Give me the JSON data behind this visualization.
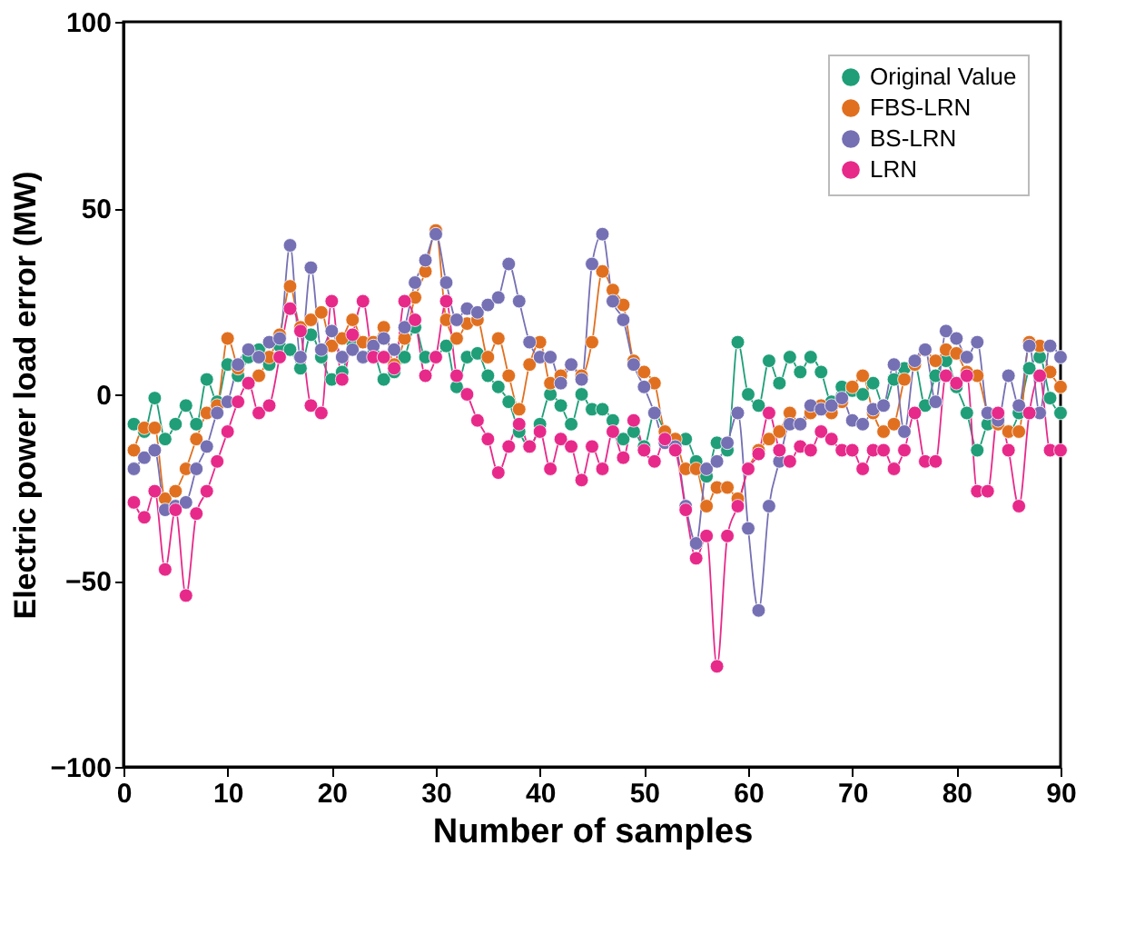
{
  "chart_data": {
    "type": "line",
    "xlabel": "Number of samples",
    "ylabel": "Electric power load error (MW)",
    "x": [
      1,
      2,
      3,
      4,
      5,
      6,
      7,
      8,
      9,
      10,
      11,
      12,
      13,
      14,
      15,
      16,
      17,
      18,
      19,
      20,
      21,
      22,
      23,
      24,
      25,
      26,
      27,
      28,
      29,
      30,
      31,
      32,
      33,
      34,
      35,
      36,
      37,
      38,
      39,
      40,
      41,
      42,
      43,
      44,
      45,
      46,
      47,
      48,
      49,
      50,
      51,
      52,
      53,
      54,
      55,
      56,
      57,
      58,
      59,
      60,
      61,
      62,
      63,
      64,
      65,
      66,
      67,
      68,
      69,
      70,
      71,
      72,
      73,
      74,
      75,
      76,
      77,
      78,
      79,
      80,
      81,
      82,
      83,
      84,
      85,
      86,
      87,
      88,
      89,
      90
    ],
    "series": [
      {
        "name": "Original Value",
        "color": "#1f9e78",
        "values": [
          -8,
          -10,
          -1,
          -12,
          -8,
          -3,
          -8,
          4,
          -2,
          8,
          5,
          10,
          12,
          8,
          13,
          12,
          7,
          16,
          10,
          4,
          6,
          14,
          10,
          11,
          4,
          6,
          10,
          18,
          10,
          10,
          13,
          2,
          10,
          11,
          5,
          2,
          -2,
          -10,
          -14,
          -8,
          0,
          -3,
          -8,
          0,
          -4,
          -4,
          -7,
          -12,
          -10,
          -14,
          -5,
          -10,
          -14,
          -12,
          -18,
          -22,
          -13,
          -15,
          14,
          0,
          -3,
          9,
          3,
          10,
          6,
          10,
          6,
          -2,
          2,
          1,
          0,
          3,
          -3,
          4,
          7,
          8,
          -3,
          5,
          9,
          2,
          -5,
          -15,
          -8,
          -6,
          -10,
          -5,
          7,
          10,
          -1,
          -5
        ]
      },
      {
        "name": "FBS-LRN",
        "color": "#e07020",
        "values": [
          -15,
          -9,
          -9,
          -28,
          -26,
          -20,
          -12,
          -5,
          -3,
          15,
          7,
          3,
          5,
          10,
          16,
          29,
          18,
          20,
          22,
          13,
          15,
          20,
          14,
          14,
          18,
          8,
          15,
          26,
          33,
          44,
          20,
          15,
          19,
          20,
          10,
          15,
          5,
          -4,
          8,
          14,
          3,
          5,
          8,
          5,
          14,
          33,
          28,
          24,
          9,
          6,
          3,
          -10,
          -12,
          -20,
          -20,
          -30,
          -25,
          -25,
          -28,
          -20,
          -15,
          -12,
          -10,
          -5,
          -8,
          -5,
          -3,
          -5,
          -2,
          2,
          5,
          -5,
          -10,
          -8,
          4,
          8,
          12,
          9,
          12,
          11,
          6,
          5,
          -5,
          -8,
          -10,
          -10,
          14,
          13,
          6,
          2
        ]
      },
      {
        "name": "BS-LRN",
        "color": "#7570b3",
        "values": [
          -20,
          -17,
          -15,
          -31,
          -30,
          -29,
          -20,
          -14,
          -5,
          -2,
          8,
          12,
          10,
          14,
          15,
          40,
          10,
          34,
          12,
          17,
          10,
          12,
          10,
          13,
          15,
          12,
          18,
          30,
          36,
          43,
          30,
          20,
          23,
          22,
          24,
          26,
          35,
          25,
          14,
          10,
          10,
          3,
          8,
          4,
          35,
          43,
          25,
          20,
          8,
          2,
          -5,
          -13,
          -14,
          -30,
          -40,
          -20,
          -18,
          -13,
          -5,
          -36,
          -58,
          -30,
          -18,
          -8,
          -8,
          -3,
          -4,
          -3,
          -1,
          -7,
          -8,
          -4,
          -3,
          8,
          -10,
          9,
          12,
          -2,
          17,
          15,
          10,
          14,
          -5,
          -7,
          5,
          -3,
          13,
          -5,
          13,
          10
        ]
      },
      {
        "name": "LRN",
        "color": "#e7298a",
        "values": [
          -29,
          -33,
          -26,
          -47,
          -31,
          -54,
          -32,
          -26,
          -18,
          -10,
          -2,
          3,
          -5,
          -3,
          10,
          23,
          17,
          -3,
          -5,
          25,
          4,
          16,
          25,
          10,
          10,
          7,
          25,
          20,
          5,
          10,
          25,
          5,
          0,
          -7,
          -12,
          -21,
          -14,
          -8,
          -14,
          -10,
          -20,
          -12,
          -14,
          -23,
          -14,
          -20,
          -10,
          -17,
          -7,
          -15,
          -18,
          -12,
          -15,
          -31,
          -44,
          -38,
          -73,
          -38,
          -30,
          -20,
          -16,
          -5,
          -15,
          -18,
          -14,
          -15,
          -10,
          -12,
          -15,
          -15,
          -20,
          -15,
          -15,
          -20,
          -15,
          -5,
          -18,
          -18,
          5,
          3,
          5,
          -26,
          -26,
          -5,
          -15,
          -30,
          -5,
          5,
          -15,
          -15
        ]
      }
    ],
    "xlim": [
      0,
      90
    ],
    "xticks": [
      0,
      10,
      20,
      30,
      40,
      50,
      60,
      70,
      80,
      90
    ],
    "ylim": [
      -100,
      100
    ],
    "yticks": [
      -100,
      -50,
      0,
      50,
      100
    ],
    "grid": false,
    "legend": "top right",
    "marker": "circle",
    "line_style": "solid"
  }
}
